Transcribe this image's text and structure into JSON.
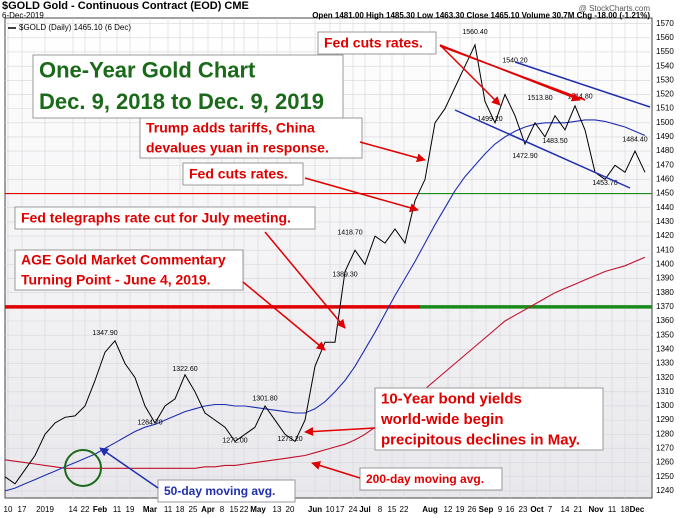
{
  "chart_data": {
    "type": "line",
    "title": "$GOLD Gold - Continuous Contract (EOD) CME",
    "date": "6-Dec-2019",
    "quote": "Open 1481.00 High 1485.30 Low 1463.30 Close 1465.10 Volume 30.7M Chg -18.00 (-1.21%)",
    "credit": "@ StockCharts.com",
    "ylim": [
      1235,
      1574
    ],
    "yticks": [
      1240,
      1250,
      1260,
      1270,
      1280,
      1290,
      1300,
      1310,
      1320,
      1330,
      1340,
      1350,
      1360,
      1370,
      1380,
      1390,
      1400,
      1410,
      1420,
      1430,
      1440,
      1450,
      1460,
      1470,
      1480,
      1490,
      1500,
      1510,
      1520,
      1530,
      1540,
      1550,
      1560,
      1570
    ],
    "xlim": [
      0,
      64.7
    ],
    "xticks": [
      {
        "value": 0.3,
        "label": "10"
      },
      {
        "value": 1.7,
        "label": "17"
      },
      {
        "value": 4,
        "label": "2019"
      },
      {
        "value": 6.8,
        "label": "14"
      },
      {
        "value": 8,
        "label": "22"
      },
      {
        "value": 9.5,
        "label": "Feb"
      },
      {
        "value": 11.2,
        "label": "11"
      },
      {
        "value": 12.5,
        "label": "19"
      },
      {
        "value": 14.5,
        "label": "Mar"
      },
      {
        "value": 16.3,
        "label": "11"
      },
      {
        "value": 17.5,
        "label": "18"
      },
      {
        "value": 18.8,
        "label": "25"
      },
      {
        "value": 20.3,
        "label": "Apr"
      },
      {
        "value": 21.7,
        "label": "8"
      },
      {
        "value": 22.9,
        "label": "15"
      },
      {
        "value": 23.9,
        "label": "22"
      },
      {
        "value": 25.3,
        "label": "May"
      },
      {
        "value": 27.2,
        "label": "13"
      },
      {
        "value": 28.5,
        "label": "20"
      },
      {
        "value": 31,
        "label": "Jun"
      },
      {
        "value": 32.5,
        "label": "10"
      },
      {
        "value": 33.5,
        "label": "17"
      },
      {
        "value": 34.8,
        "label": "24"
      },
      {
        "value": 36,
        "label": "Jul"
      },
      {
        "value": 37.5,
        "label": "8"
      },
      {
        "value": 38.7,
        "label": "15"
      },
      {
        "value": 39.9,
        "label": "22"
      },
      {
        "value": 42.5,
        "label": "Aug"
      },
      {
        "value": 44.3,
        "label": "12"
      },
      {
        "value": 45.5,
        "label": "19"
      },
      {
        "value": 46.7,
        "label": "26"
      },
      {
        "value": 48.1,
        "label": "Sep"
      },
      {
        "value": 49.5,
        "label": "9"
      },
      {
        "value": 50.5,
        "label": "16"
      },
      {
        "value": 51.8,
        "label": "23"
      },
      {
        "value": 53.2,
        "label": "Oct"
      },
      {
        "value": 54.5,
        "label": "7"
      },
      {
        "value": 56,
        "label": "14"
      },
      {
        "value": 57.3,
        "label": "21"
      },
      {
        "value": 59.1,
        "label": "Nov"
      },
      {
        "value": 60.7,
        "label": "11"
      },
      {
        "value": 62,
        "label": "18"
      },
      {
        "value": 63.2,
        "label": "Dec"
      }
    ],
    "grid": true,
    "series": [
      {
        "name": "$GOLD (Daily) 1465.10 (6 Dec)",
        "color": "#000000",
        "values": [
          1250,
          1245,
          1255,
          1265,
          1280,
          1288,
          1292,
          1293,
          1300,
          1318,
          1338,
          1346,
          1330,
          1320,
          1300,
          1288,
          1300,
          1305,
          1322,
          1310,
          1295,
          1290,
          1285,
          1275,
          1280,
          1285,
          1300,
          1290,
          1280,
          1275,
          1290,
          1328,
          1345,
          1345,
          1395,
          1410,
          1400,
          1420,
          1415,
          1425,
          1415,
          1445,
          1460,
          1500,
          1510,
          1525,
          1540,
          1555,
          1515,
          1500,
          1520,
          1505,
          1485,
          1500,
          1490,
          1505,
          1495,
          1512,
          1495,
          1465,
          1460,
          1470,
          1465,
          1480,
          1465
        ]
      },
      {
        "name": "50-day moving avg.",
        "color": "#1f2fb0",
        "values": [
          1240,
          1242,
          1245,
          1248,
          1251,
          1254,
          1257,
          1260,
          1263,
          1266,
          1270,
          1274,
          1278,
          1282,
          1285,
          1287,
          1290,
          1293,
          1296,
          1298,
          1300,
          1301,
          1301,
          1300,
          1300,
          1299,
          1298,
          1297,
          1296,
          1295,
          1295,
          1298,
          1303,
          1310,
          1318,
          1328,
          1340,
          1352,
          1365,
          1378,
          1390,
          1402,
          1415,
          1428,
          1440,
          1452,
          1462,
          1470,
          1478,
          1485,
          1490,
          1494,
          1497,
          1499,
          1500,
          1500,
          1500,
          1501,
          1502,
          1502,
          1501,
          1499,
          1497,
          1494,
          1491
        ]
      },
      {
        "name": "200-day moving avg.",
        "color": "#c0102a",
        "values": [
          1262,
          1261,
          1260,
          1259,
          1258,
          1257,
          1256,
          1256,
          1256,
          1256,
          1256,
          1256,
          1256,
          1256,
          1256,
          1256,
          1256,
          1256,
          1256,
          1256,
          1257,
          1257,
          1258,
          1258,
          1259,
          1260,
          1261,
          1262,
          1263,
          1264,
          1265,
          1267,
          1269,
          1271,
          1273,
          1276,
          1280,
          1285,
          1290,
          1295,
          1300,
          1306,
          1312,
          1318,
          1324,
          1330,
          1336,
          1342,
          1348,
          1354,
          1360,
          1364,
          1368,
          1372,
          1376,
          1380,
          1383,
          1386,
          1389,
          1392,
          1395,
          1397,
          1399,
          1402,
          1405
        ]
      }
    ],
    "price_labels": [
      {
        "x": 10,
        "value": 1347.9,
        "label": "1347.90"
      },
      {
        "x": 18,
        "value": 1322.6,
        "label": "1322.60"
      },
      {
        "x": 14.5,
        "value": 1284.7,
        "label": "1284.70"
      },
      {
        "x": 26,
        "value": 1301.8,
        "label": "1301.80"
      },
      {
        "x": 23,
        "value": 1272,
        "label": "1272.00"
      },
      {
        "x": 28.5,
        "value": 1273.2,
        "label": "1273.20"
      },
      {
        "x": 34.5,
        "value": 1418.7,
        "label": "1418.70"
      },
      {
        "x": 34,
        "value": 1389.3,
        "label": "1389.30"
      },
      {
        "x": 47,
        "value": 1560.4,
        "label": "1560.40"
      },
      {
        "x": 48.5,
        "value": 1499.2,
        "label": "1499.20"
      },
      {
        "x": 51,
        "value": 1540.2,
        "label": "1540.20"
      },
      {
        "x": 53.5,
        "value": 1513.8,
        "label": "1513.80"
      },
      {
        "x": 57.5,
        "value": 1514.8,
        "label": "1514.80"
      },
      {
        "x": 52,
        "value": 1472.9,
        "label": "1472.90"
      },
      {
        "x": 55,
        "value": 1483.5,
        "label": "1483.50"
      },
      {
        "x": 60,
        "value": 1453.7,
        "label": "1453.70"
      },
      {
        "x": 63,
        "value": 1484.4,
        "label": "1484.40"
      }
    ],
    "levels": [
      1450,
      1370
    ],
    "annotations": {
      "headline": [
        "One-Year Gold Chart",
        "Dec. 9, 2018 to Dec. 9, 2019"
      ],
      "fed_cuts_1": "Fed cuts rates.",
      "trump": [
        "Trump adds tariffs, China",
        "devalues yuan in response."
      ],
      "fed_cuts_2": "Fed cuts rates.",
      "fed_telegraphs": "Fed telegraphs rate cut for July meeting.",
      "age": [
        "AGE Gold Market Commentary",
        "Turning Point - June 4, 2019."
      ],
      "bonds": [
        "10-Year bond yields",
        "world-wide begin",
        "precipitous declines in May."
      ]
    }
  }
}
